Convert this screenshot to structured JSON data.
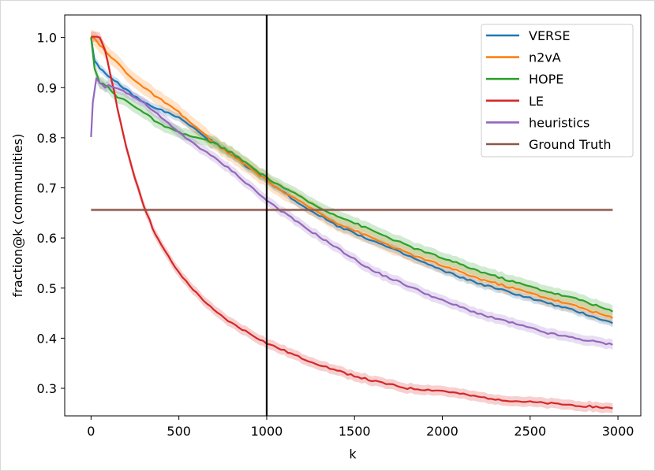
{
  "chart_data": {
    "type": "line",
    "title": "",
    "xlabel": "k",
    "ylabel": "fraction@k (communities)",
    "xlim": [
      -150,
      3130
    ],
    "ylim": [
      0.245,
      1.045
    ],
    "xticks": [
      "0",
      "500",
      "1000",
      "1500",
      "2000",
      "2500",
      "3000"
    ],
    "xtick_values": [
      0,
      500,
      1000,
      1500,
      2000,
      2500,
      3000
    ],
    "yticks": [
      "0.3",
      "0.4",
      "0.5",
      "0.6",
      "0.7",
      "0.8",
      "0.9",
      "1.0"
    ],
    "ytick_values": [
      0.3,
      0.4,
      0.5,
      0.6,
      0.7,
      0.8,
      0.9,
      1.0
    ],
    "vline_x": 1000,
    "legend_position": "upper right",
    "series": [
      {
        "name": "VERSE",
        "color": "#1f77b4",
        "x": [
          0,
          20,
          50,
          100,
          150,
          200,
          300,
          400,
          500,
          600,
          700,
          800,
          900,
          1000,
          1100,
          1200,
          1300,
          1400,
          1500,
          1600,
          1700,
          1800,
          1900,
          2000,
          2200,
          2400,
          2600,
          2800,
          2970
        ],
        "values": [
          1.0,
          0.955,
          0.94,
          0.92,
          0.91,
          0.895,
          0.87,
          0.855,
          0.84,
          0.815,
          0.79,
          0.765,
          0.74,
          0.715,
          0.69,
          0.665,
          0.645,
          0.625,
          0.61,
          0.595,
          0.58,
          0.565,
          0.55,
          0.535,
          0.51,
          0.49,
          0.47,
          0.45,
          0.43
        ],
        "band": 0.008
      },
      {
        "name": "n2vA",
        "color": "#ff7f0e",
        "x": [
          0,
          20,
          50,
          100,
          150,
          200,
          300,
          400,
          500,
          600,
          700,
          800,
          900,
          1000,
          1100,
          1200,
          1300,
          1400,
          1500,
          1600,
          1700,
          1800,
          1900,
          2000,
          2200,
          2400,
          2600,
          2800,
          2970
        ],
        "values": [
          1.0,
          1.0,
          0.985,
          0.965,
          0.95,
          0.93,
          0.9,
          0.875,
          0.85,
          0.82,
          0.79,
          0.765,
          0.74,
          0.715,
          0.69,
          0.67,
          0.65,
          0.63,
          0.615,
          0.6,
          0.585,
          0.57,
          0.557,
          0.545,
          0.52,
          0.5,
          0.48,
          0.46,
          0.44
        ],
        "band": 0.015
      },
      {
        "name": "HOPE",
        "color": "#2ca02c",
        "x": [
          0,
          20,
          50,
          100,
          150,
          200,
          300,
          400,
          500,
          600,
          700,
          800,
          900,
          1000,
          1100,
          1200,
          1300,
          1400,
          1500,
          1600,
          1700,
          1800,
          1900,
          2000,
          2200,
          2400,
          2600,
          2800,
          2970
        ],
        "values": [
          1.0,
          0.94,
          0.91,
          0.9,
          0.88,
          0.875,
          0.85,
          0.825,
          0.81,
          0.8,
          0.79,
          0.77,
          0.745,
          0.72,
          0.7,
          0.68,
          0.66,
          0.645,
          0.63,
          0.615,
          0.6,
          0.585,
          0.572,
          0.56,
          0.535,
          0.513,
          0.493,
          0.475,
          0.453
        ],
        "band": 0.012
      },
      {
        "name": "LE",
        "color": "#d62728",
        "x": [
          0,
          20,
          50,
          80,
          100,
          150,
          200,
          250,
          300,
          350,
          400,
          500,
          600,
          700,
          800,
          900,
          1000,
          1200,
          1400,
          1600,
          1800,
          2000,
          2200,
          2400,
          2600,
          2800,
          2970
        ],
        "values": [
          1.0,
          1.0,
          1.0,
          0.975,
          0.945,
          0.86,
          0.78,
          0.72,
          0.665,
          0.62,
          0.585,
          0.53,
          0.49,
          0.455,
          0.43,
          0.41,
          0.39,
          0.36,
          0.335,
          0.315,
          0.3,
          0.295,
          0.283,
          0.275,
          0.27,
          0.265,
          0.26
        ],
        "band": 0.01
      },
      {
        "name": "heuristics",
        "color": "#9467bd",
        "x": [
          0,
          10,
          30,
          50,
          80,
          100,
          150,
          200,
          300,
          400,
          500,
          600,
          700,
          800,
          900,
          1000,
          1200,
          1400,
          1600,
          1800,
          2000,
          2200,
          2400,
          2600,
          2800,
          2970
        ],
        "values": [
          0.8,
          0.87,
          0.92,
          0.91,
          0.9,
          0.905,
          0.9,
          0.89,
          0.87,
          0.84,
          0.81,
          0.785,
          0.76,
          0.735,
          0.705,
          0.675,
          0.625,
          0.58,
          0.535,
          0.505,
          0.475,
          0.45,
          0.43,
          0.41,
          0.397,
          0.387
        ],
        "band": 0.01
      },
      {
        "name": "Ground Truth",
        "color": "#8c564b",
        "x": [
          0,
          2970
        ],
        "values": [
          0.656,
          0.656
        ],
        "band": 0.003
      }
    ]
  }
}
